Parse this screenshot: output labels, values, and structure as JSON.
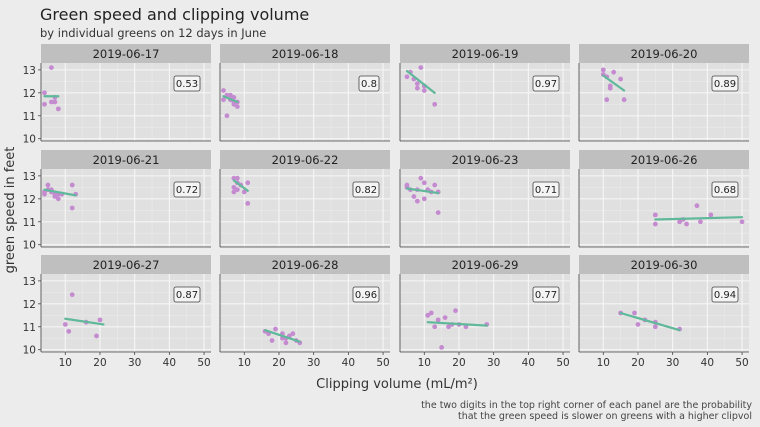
{
  "chart_data": {
    "type": "scatter",
    "title": "Green speed and clipping volume",
    "subtitle": "by individual greens on 12 days in June",
    "xlabel": "Clipping volume (mL/m²)",
    "ylabel": "green speed in feet",
    "caption": [
      "the two digits in the top right corner of each panel are the probability",
      "that the green speed is slower on greens with a higher clipvol"
    ],
    "xlim": [
      3,
      52
    ],
    "ylim": [
      9.9,
      13.3
    ],
    "xticks": [
      10,
      20,
      30,
      40,
      50
    ],
    "yticks": [
      10,
      11,
      12,
      13
    ],
    "grid": true,
    "colors": {
      "point": "#c58bd0",
      "fit": "#5fb89a",
      "background": "#ececec",
      "panel": "#e0e0e0",
      "strip": "#bfbfbf"
    },
    "panels": [
      {
        "date": "2019-06-17",
        "prob": "0.53",
        "points": [
          [
            4,
            12.0
          ],
          [
            4,
            11.5
          ],
          [
            6,
            11.6
          ],
          [
            6,
            13.1
          ],
          [
            7,
            11.8
          ],
          [
            7,
            11.6
          ],
          [
            8,
            11.3
          ]
        ],
        "fit": [
          [
            4,
            11.85
          ],
          [
            8,
            11.85
          ]
        ]
      },
      {
        "date": "2019-06-18",
        "prob": "0.8",
        "points": [
          [
            4,
            12.1
          ],
          [
            4,
            11.7
          ],
          [
            5,
            11.9
          ],
          [
            5,
            11.0
          ],
          [
            6,
            11.9
          ],
          [
            6,
            11.7
          ],
          [
            7,
            11.8
          ],
          [
            7,
            11.6
          ],
          [
            7,
            11.5
          ],
          [
            8,
            11.6
          ],
          [
            8,
            11.4
          ]
        ],
        "fit": [
          [
            4,
            11.85
          ],
          [
            8,
            11.6
          ]
        ]
      },
      {
        "date": "2019-06-19",
        "prob": "0.97",
        "points": [
          [
            5,
            12.7
          ],
          [
            6,
            12.9
          ],
          [
            7,
            12.6
          ],
          [
            8,
            12.4
          ],
          [
            8,
            12.2
          ],
          [
            9,
            13.1
          ],
          [
            10,
            12.1
          ],
          [
            10,
            12.3
          ],
          [
            13,
            11.5
          ]
        ],
        "fit": [
          [
            5,
            12.95
          ],
          [
            13,
            12.0
          ]
        ]
      },
      {
        "date": "2019-06-20",
        "prob": "0.89",
        "points": [
          [
            10,
            13.0
          ],
          [
            10,
            12.8
          ],
          [
            11,
            12.7
          ],
          [
            11,
            11.7
          ],
          [
            12,
            12.2
          ],
          [
            12,
            12.3
          ],
          [
            13,
            12.9
          ],
          [
            15,
            12.6
          ],
          [
            16,
            11.7
          ]
        ],
        "fit": [
          [
            10,
            12.75
          ],
          [
            16,
            12.1
          ]
        ]
      },
      {
        "date": "2019-06-21",
        "prob": "0.72",
        "points": [
          [
            4,
            12.3
          ],
          [
            4,
            12.2
          ],
          [
            5,
            12.6
          ],
          [
            5,
            12.4
          ],
          [
            6,
            12.3
          ],
          [
            6,
            12.4
          ],
          [
            7,
            12.2
          ],
          [
            7,
            12.1
          ],
          [
            8,
            12.2
          ],
          [
            8,
            12.0
          ],
          [
            9,
            12.2
          ],
          [
            12,
            12.6
          ],
          [
            12,
            11.6
          ],
          [
            13,
            12.2
          ]
        ],
        "fit": [
          [
            4,
            12.4
          ],
          [
            13,
            12.15
          ]
        ]
      },
      {
        "date": "2019-06-22",
        "prob": "0.82",
        "points": [
          [
            7,
            12.9
          ],
          [
            7,
            12.5
          ],
          [
            7,
            12.3
          ],
          [
            8,
            12.9
          ],
          [
            8,
            12.4
          ],
          [
            8,
            12.7
          ],
          [
            9,
            12.6
          ],
          [
            10,
            12.3
          ],
          [
            11,
            12.7
          ],
          [
            11,
            11.8
          ]
        ],
        "fit": [
          [
            7,
            12.8
          ],
          [
            11,
            12.35
          ]
        ]
      },
      {
        "date": "2019-06-23",
        "prob": "0.71",
        "points": [
          [
            5,
            12.6
          ],
          [
            5,
            12.5
          ],
          [
            6,
            12.4
          ],
          [
            7,
            12.1
          ],
          [
            8,
            11.9
          ],
          [
            8,
            12.4
          ],
          [
            9,
            12.9
          ],
          [
            10,
            12.7
          ],
          [
            10,
            12.0
          ],
          [
            11,
            12.4
          ],
          [
            12,
            12.3
          ],
          [
            13,
            12.6
          ],
          [
            14,
            12.3
          ],
          [
            14,
            11.4
          ]
        ],
        "fit": [
          [
            5,
            12.45
          ],
          [
            14,
            12.25
          ]
        ]
      },
      {
        "date": "2019-06-26",
        "prob": "0.68",
        "points": [
          [
            25,
            11.3
          ],
          [
            25,
            10.9
          ],
          [
            32,
            11.0
          ],
          [
            33,
            11.1
          ],
          [
            34,
            10.9
          ],
          [
            37,
            11.7
          ],
          [
            38,
            11.0
          ],
          [
            41,
            11.3
          ],
          [
            50,
            11.0
          ]
        ],
        "fit": [
          [
            25,
            11.1
          ],
          [
            50,
            11.2
          ]
        ]
      },
      {
        "date": "2019-06-27",
        "prob": "0.87",
        "points": [
          [
            10,
            11.1
          ],
          [
            11,
            10.8
          ],
          [
            12,
            12.4
          ],
          [
            16,
            11.2
          ],
          [
            19,
            10.6
          ],
          [
            20,
            11.3
          ]
        ],
        "fit": [
          [
            10,
            11.35
          ],
          [
            21,
            11.1
          ]
        ]
      },
      {
        "date": "2019-06-28",
        "prob": "0.96",
        "points": [
          [
            16,
            10.8
          ],
          [
            17,
            10.7
          ],
          [
            18,
            10.4
          ],
          [
            19,
            10.9
          ],
          [
            21,
            10.7
          ],
          [
            21,
            10.5
          ],
          [
            22,
            10.3
          ],
          [
            22,
            10.5
          ],
          [
            23,
            10.6
          ],
          [
            24,
            10.7
          ],
          [
            25,
            10.4
          ],
          [
            26,
            10.3
          ]
        ],
        "fit": [
          [
            16,
            10.85
          ],
          [
            26,
            10.35
          ]
        ]
      },
      {
        "date": "2019-06-29",
        "prob": "0.77",
        "points": [
          [
            11,
            11.5
          ],
          [
            12,
            11.6
          ],
          [
            13,
            11.0
          ],
          [
            14,
            11.3
          ],
          [
            15,
            10.1
          ],
          [
            16,
            11.4
          ],
          [
            17,
            11.0
          ],
          [
            18,
            11.1
          ],
          [
            19,
            11.7
          ],
          [
            20,
            11.1
          ],
          [
            22,
            11.0
          ],
          [
            28,
            11.1
          ]
        ],
        "fit": [
          [
            11,
            11.2
          ],
          [
            28,
            11.05
          ]
        ]
      },
      {
        "date": "2019-06-30",
        "prob": "0.94",
        "points": [
          [
            15,
            11.6
          ],
          [
            19,
            11.6
          ],
          [
            20,
            11.1
          ],
          [
            22,
            11.3
          ],
          [
            25,
            11.2
          ],
          [
            25,
            11.0
          ],
          [
            32,
            10.9
          ]
        ],
        "fit": [
          [
            15,
            11.6
          ],
          [
            32,
            10.85
          ]
        ]
      }
    ]
  }
}
